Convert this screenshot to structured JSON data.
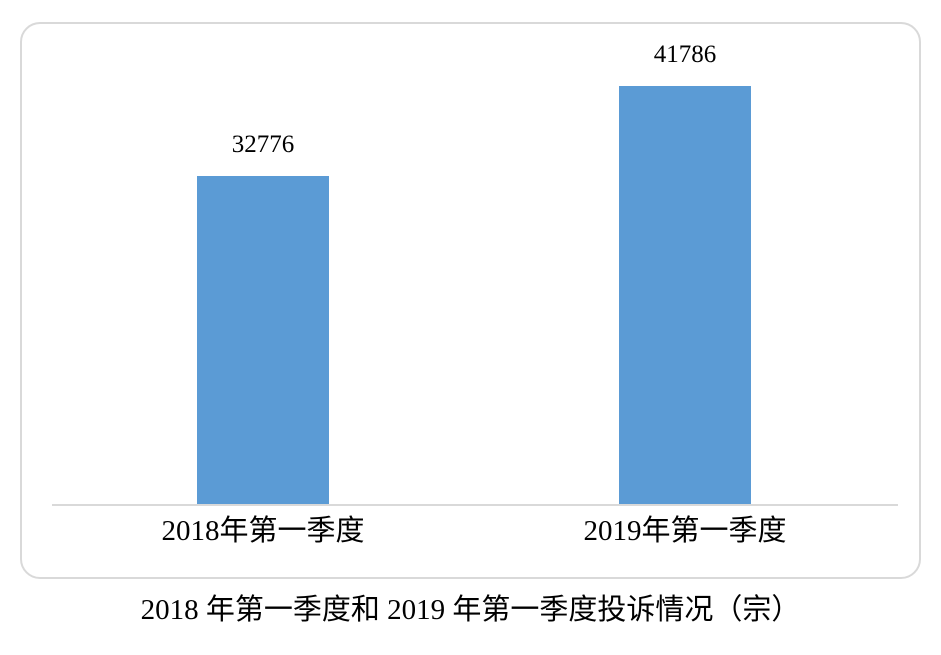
{
  "chart_data": {
    "type": "bar",
    "title": "2018 年第一季度和 2019 年第一季度投诉情况（宗）",
    "categories": [
      "2018年第一季度",
      "2019年第一季度"
    ],
    "values": [
      32776,
      41786
    ],
    "data_labels_shown": true,
    "xlabel": "",
    "ylabel": "",
    "ylim": [
      0,
      45000
    ],
    "grid": false,
    "legend": false,
    "bar_color": "#5b9bd5",
    "axis_line_color": "#d9d9d9",
    "frame_border_color": "#d9d9d9"
  }
}
